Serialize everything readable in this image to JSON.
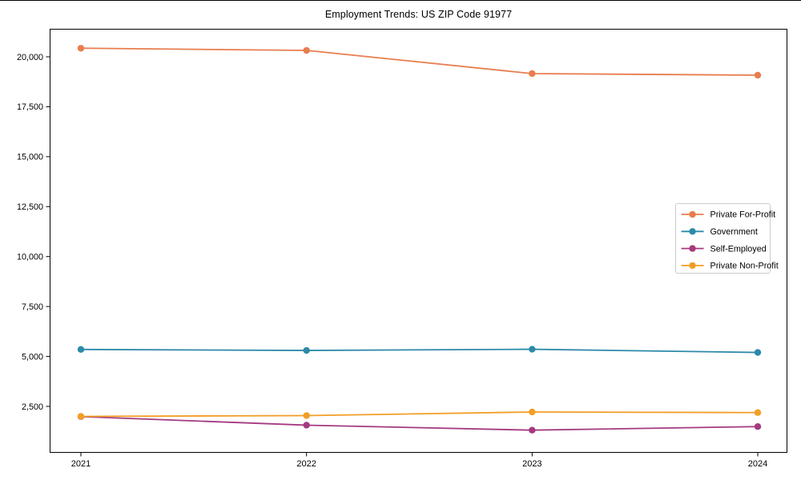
{
  "chart_data": {
    "type": "line",
    "title": "Employment Trends: US ZIP Code 91977",
    "categories": [
      "2021",
      "2022",
      "2023",
      "2024"
    ],
    "series": [
      {
        "name": "Private For-Profit",
        "color": "#e87d4e",
        "values": [
          20430,
          20320,
          19160,
          19080
        ]
      },
      {
        "name": "Government",
        "color": "#2d8aaa",
        "values": [
          5350,
          5300,
          5360,
          5200
        ]
      },
      {
        "name": "Self-Employed",
        "color": "#a43a80",
        "values": [
          1990,
          1560,
          1310,
          1490
        ]
      },
      {
        "name": "Private Non-Profit",
        "color": "#f29e27",
        "values": [
          2000,
          2040,
          2220,
          2190
        ]
      }
    ],
    "xlabel": "",
    "ylabel": "",
    "ylim": [
      177,
      21402
    ],
    "yticks": [
      2500,
      5000,
      7500,
      10000,
      12500,
      15000,
      17500,
      20000
    ],
    "ytick_labels": [
      "2,500",
      "5,000",
      "7,500",
      "10,000",
      "12,500",
      "15,000",
      "17,500",
      "20,000"
    ],
    "grid": false,
    "legend_position": "center-right",
    "marker": "circle",
    "axis_color": "#000000",
    "legend_border_color": "#cccccc",
    "background": "#ffffff"
  }
}
